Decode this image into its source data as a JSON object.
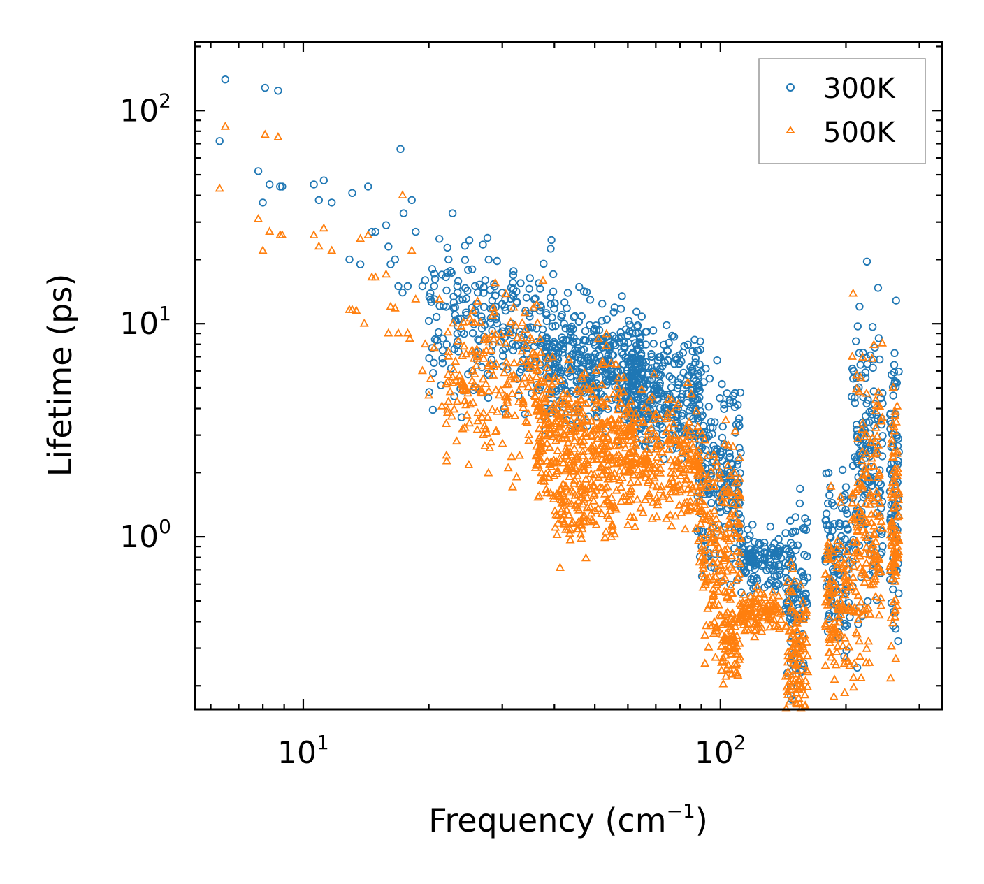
{
  "chart_data": {
    "type": "scatter",
    "title": "",
    "xlabel": "Frequency (cm",
    "xlabel_sup": "−1",
    "xlabel_end": ")",
    "ylabel": "Lifetime (ps)",
    "xscale": "log",
    "yscale": "log",
    "xlim": [
      5.5,
      340
    ],
    "ylim": [
      0.155,
      210
    ],
    "xticks": [
      {
        "value": 10,
        "base": "10",
        "exp": "1"
      },
      {
        "value": 100,
        "base": "10",
        "exp": "2"
      }
    ],
    "yticks": [
      {
        "value": 1,
        "base": "10",
        "exp": "0"
      },
      {
        "value": 10,
        "base": "10",
        "exp": "1"
      },
      {
        "value": 100,
        "base": "10",
        "exp": "2"
      }
    ],
    "legend_position": "top-right",
    "series": [
      {
        "name": "300K",
        "marker": "circle",
        "color": "#1f77b4",
        "points": [
          [
            6.3,
            72
          ],
          [
            6.5,
            140
          ],
          [
            7.8,
            52
          ],
          [
            8.0,
            37
          ],
          [
            8.1,
            128
          ],
          [
            8.3,
            45
          ],
          [
            8.7,
            124
          ],
          [
            8.8,
            44
          ],
          [
            8.9,
            44
          ],
          [
            10.6,
            45
          ],
          [
            10.9,
            38
          ],
          [
            11.2,
            47
          ],
          [
            11.7,
            37
          ],
          [
            12.9,
            20
          ],
          [
            13.1,
            41
          ],
          [
            13.7,
            19
          ],
          [
            14.3,
            44
          ],
          [
            14.6,
            27
          ],
          [
            14.9,
            27
          ],
          [
            15.8,
            29
          ],
          [
            16.0,
            23
          ],
          [
            16.2,
            19
          ],
          [
            16.6,
            20
          ],
          [
            16.9,
            15
          ],
          [
            17.3,
            14
          ],
          [
            17.4,
            33
          ],
          [
            17.8,
            15
          ],
          [
            18.2,
            38
          ],
          [
            18.6,
            27
          ],
          [
            19.3,
            15
          ],
          [
            19.6,
            16
          ],
          [
            20.2,
            13
          ],
          [
            20.6,
            15
          ],
          [
            21.2,
            25
          ],
          [
            21.5,
            17
          ],
          [
            22.3,
            20
          ],
          [
            22.8,
            33
          ],
          [
            23.4,
            15
          ],
          [
            24.1,
            13
          ],
          [
            25.4,
            18
          ],
          [
            26.2,
            14
          ],
          [
            27.3,
            16
          ],
          [
            29.0,
            10.5
          ],
          [
            30.5,
            13
          ],
          [
            31.6,
            10
          ],
          [
            33.2,
            15.5
          ],
          [
            34.1,
            11.5
          ],
          [
            35.8,
            13
          ],
          [
            36.7,
            15.5
          ],
          [
            17.1,
            66
          ],
          [
            20.0,
            10.3
          ],
          [
            22.0,
            12
          ],
          [
            24.6,
            11
          ],
          [
            26.8,
            9.5
          ],
          [
            28.5,
            11.8
          ],
          [
            30.0,
            9.2
          ],
          [
            32.5,
            12.5
          ],
          [
            34.9,
            10.8
          ],
          [
            37.5,
            9.4
          ]
        ],
        "bands": [
          {
            "xmin": 20,
            "xmax": 40,
            "center": 9.5,
            "spread": 0.18,
            "count": 220
          },
          {
            "xmin": 38,
            "xmax": 65,
            "center": 6.3,
            "spread": 0.14,
            "count": 420
          },
          {
            "xmin": 60,
            "xmax": 90,
            "center": 4.7,
            "spread": 0.13,
            "count": 280
          },
          {
            "xmin": 88,
            "xmax": 112,
            "center": 2.0,
            "spread": 0.25,
            "count": 200
          },
          {
            "xmin": 112,
            "xmax": 140,
            "center": 0.76,
            "spread": 0.06,
            "count": 120
          },
          {
            "xmin": 143,
            "xmax": 162,
            "center": 0.55,
            "spread": 0.2,
            "count": 110
          },
          {
            "xmin": 178,
            "xmax": 205,
            "center": 0.82,
            "spread": 0.2,
            "count": 110
          },
          {
            "xmin": 206,
            "xmax": 245,
            "center": 2.0,
            "spread": 0.35,
            "count": 170
          },
          {
            "xmin": 255,
            "xmax": 268,
            "center": 1.8,
            "spread": 0.3,
            "count": 90
          }
        ]
      },
      {
        "name": "500K",
        "marker": "triangle",
        "color": "#ff7f0e",
        "points": [
          [
            6.3,
            43
          ],
          [
            6.5,
            84
          ],
          [
            7.8,
            31
          ],
          [
            8.0,
            22
          ],
          [
            8.1,
            77
          ],
          [
            8.3,
            27
          ],
          [
            8.7,
            75
          ],
          [
            8.8,
            26
          ],
          [
            8.9,
            26
          ],
          [
            10.6,
            26
          ],
          [
            10.9,
            23
          ],
          [
            11.2,
            28
          ],
          [
            11.7,
            22
          ],
          [
            12.9,
            11.6
          ],
          [
            13.1,
            11.6
          ],
          [
            13.7,
            25
          ],
          [
            14.3,
            26
          ],
          [
            14.6,
            16.5
          ],
          [
            14.9,
            16.5
          ],
          [
            15.8,
            17
          ],
          [
            16.2,
            12
          ],
          [
            16.6,
            11.8
          ],
          [
            16.9,
            9
          ],
          [
            17.3,
            40
          ],
          [
            17.8,
            9
          ],
          [
            18.2,
            22
          ],
          [
            18.6,
            13
          ],
          [
            19.3,
            6
          ],
          [
            19.6,
            8
          ],
          [
            20.2,
            5.5
          ],
          [
            20.6,
            7.7
          ],
          [
            21.2,
            13
          ],
          [
            21.5,
            4.1
          ],
          [
            22.3,
            7
          ],
          [
            22.8,
            5.6
          ],
          [
            23.4,
            4.3
          ],
          [
            24.1,
            3.2
          ],
          [
            25.4,
            7.5
          ],
          [
            26.2,
            3.8
          ],
          [
            13.4,
            11.5
          ],
          [
            14.0,
            10
          ],
          [
            16.0,
            9
          ],
          [
            18.0,
            8.5
          ],
          [
            20.0,
            4.6
          ],
          [
            22.0,
            5.2
          ],
          [
            27.0,
            3.0
          ],
          [
            28.0,
            2.6
          ],
          [
            31.0,
            2.1
          ],
          [
            33.0,
            2.4
          ]
        ],
        "bands": [
          {
            "xmin": 22,
            "xmax": 38,
            "center": 5.5,
            "spread": 0.2,
            "count": 200
          },
          {
            "xmin": 36,
            "xmax": 62,
            "center": 2.9,
            "spread": 0.17,
            "count": 430
          },
          {
            "xmin": 40,
            "xmax": 56,
            "center": 1.35,
            "spread": 0.12,
            "count": 90
          },
          {
            "xmin": 60,
            "xmax": 90,
            "center": 2.2,
            "spread": 0.14,
            "count": 260
          },
          {
            "xmin": 88,
            "xmax": 112,
            "center": 0.95,
            "spread": 0.25,
            "count": 200
          },
          {
            "xmin": 100,
            "xmax": 112,
            "center": 0.33,
            "spread": 0.1,
            "count": 60
          },
          {
            "xmin": 112,
            "xmax": 140,
            "center": 0.44,
            "spread": 0.05,
            "count": 110
          },
          {
            "xmin": 143,
            "xmax": 162,
            "center": 0.27,
            "spread": 0.18,
            "count": 120
          },
          {
            "xmin": 178,
            "xmax": 205,
            "center": 0.5,
            "spread": 0.22,
            "count": 110
          },
          {
            "xmin": 206,
            "xmax": 245,
            "center": 1.3,
            "spread": 0.35,
            "count": 170
          },
          {
            "xmin": 255,
            "xmax": 268,
            "center": 1.2,
            "spread": 0.3,
            "count": 90
          }
        ]
      }
    ]
  }
}
